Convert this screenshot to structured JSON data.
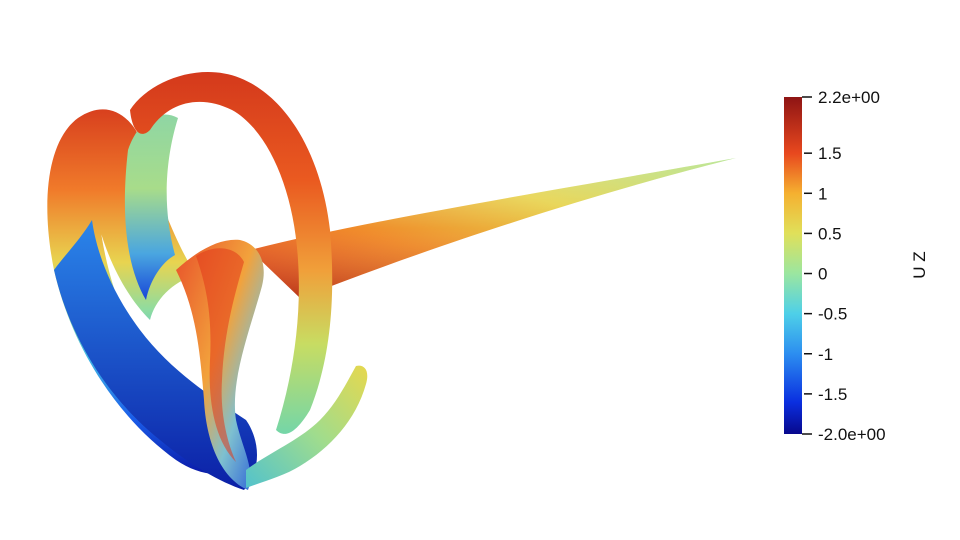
{
  "colorbar": {
    "title": "U Z",
    "max_label": "2.2e+00",
    "min_label": "-2.0e+00",
    "range": [
      -2.0,
      2.2
    ],
    "ticks": [
      {
        "value": 1.5,
        "label": "1.5"
      },
      {
        "value": 1,
        "label": "1"
      },
      {
        "value": 0.5,
        "label": "0.5"
      },
      {
        "value": 0,
        "label": "0"
      },
      {
        "value": -0.5,
        "label": "-0.5"
      },
      {
        "value": -1,
        "label": "-1"
      },
      {
        "value": -1.5,
        "label": "-1.5"
      }
    ],
    "colormap": [
      {
        "value": -2.0,
        "color": "#08088c"
      },
      {
        "value": -1.6,
        "color": "#0a2fe0"
      },
      {
        "value": -1.0,
        "color": "#2c8ef0"
      },
      {
        "value": -0.5,
        "color": "#4ed0e8"
      },
      {
        "value": 0.0,
        "color": "#9be6a0"
      },
      {
        "value": 0.5,
        "color": "#e0e05a"
      },
      {
        "value": 1.0,
        "color": "#f5b030"
      },
      {
        "value": 1.5,
        "color": "#e8481e"
      },
      {
        "value": 2.2,
        "color": "#8e1414"
      }
    ]
  },
  "render": {
    "background_color": "#ffffff",
    "object": "vortex-filament-surface"
  }
}
